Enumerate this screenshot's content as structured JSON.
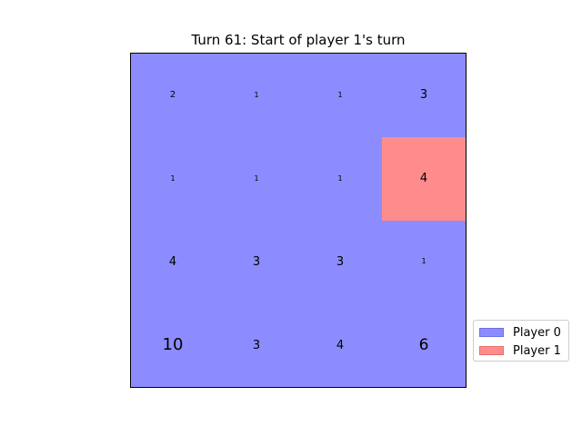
{
  "title": "Turn 61: Start of player 1's turn",
  "players": [
    {
      "label": "Player 0",
      "color": "#8c8cff",
      "border": "#6e6ee8"
    },
    {
      "label": "Player 1",
      "color": "#ff8c8c",
      "border": "#e86e6e"
    }
  ],
  "board": {
    "rows": 4,
    "cols": 4,
    "cells": [
      [
        {
          "owner": 0,
          "value": "2"
        },
        {
          "owner": 0,
          "value": "1"
        },
        {
          "owner": 0,
          "value": "1"
        },
        {
          "owner": 0,
          "value": "3"
        }
      ],
      [
        {
          "owner": 0,
          "value": "1"
        },
        {
          "owner": 0,
          "value": "1"
        },
        {
          "owner": 0,
          "value": "1"
        },
        {
          "owner": 1,
          "value": "4"
        }
      ],
      [
        {
          "owner": 0,
          "value": "4"
        },
        {
          "owner": 0,
          "value": "3"
        },
        {
          "owner": 0,
          "value": "3"
        },
        {
          "owner": 0,
          "value": "1"
        }
      ],
      [
        {
          "owner": 0,
          "value": "10"
        },
        {
          "owner": 0,
          "value": "3"
        },
        {
          "owner": 0,
          "value": "4"
        },
        {
          "owner": 0,
          "value": "6"
        }
      ]
    ]
  }
}
